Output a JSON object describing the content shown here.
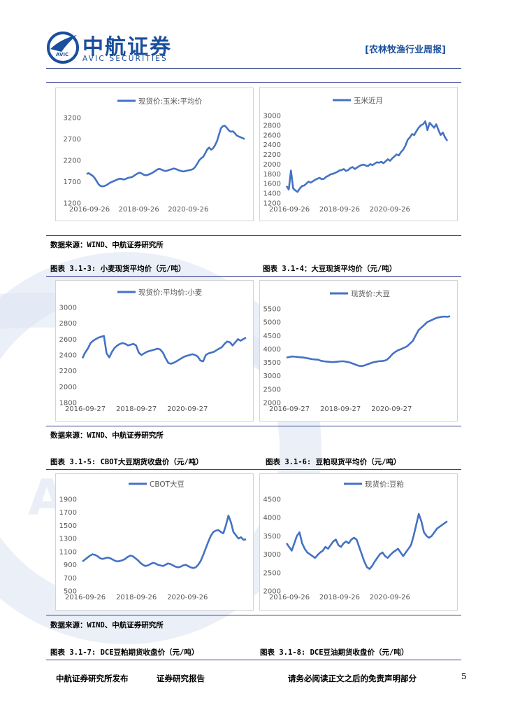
{
  "header": {
    "brand_cn": "中航证券",
    "brand_en": "AVIC SECURITIES",
    "logo_text": "AVIC",
    "report_tag": "[农林牧渔行业周报]"
  },
  "watermark_text": "AVIC",
  "sources": [
    "数据来源：WIND、中航证券研究所",
    "数据来源：WIND、中航证券研究所",
    "数据来源：WIND、中航证券研究所"
  ],
  "captions": {
    "c1_3": "图表 3.1-3:  小麦现货平均价（元/吨）",
    "c1_4": "图表 3.1-4：大豆现货平均价（元/吨）",
    "c1_5": "图表 3.1-5:  CBOT大豆期货收盘价（元/吨）",
    "c1_6": "图表 3.1-6:  豆粕现货平均价（元/吨）",
    "c1_7": "图表 3.1-7:  DCE豆粕期货收盘价（元/吨）",
    "c1_8": "图表 3.1-8:  DCE豆油期货收盘价（元/吨）"
  },
  "footer": {
    "publisher": "中航证券研究所发布",
    "report_type": "证券研究报告",
    "disclaimer": "请务必阅读正文之后的免责声明部分",
    "page": "5"
  },
  "colors": {
    "line": "#4472c4",
    "brand": "#1a4f9c",
    "rule": "#1a2f80"
  },
  "chart_data": [
    {
      "type": "line",
      "series": [
        {
          "name": "现货价:玉米:平均价",
          "values": [
            1880,
            1900,
            1870,
            1840,
            1790,
            1720,
            1640,
            1600,
            1590,
            1600,
            1620,
            1650,
            1680,
            1700,
            1720,
            1740,
            1760,
            1770,
            1760,
            1750,
            1770,
            1790,
            1800,
            1810,
            1840,
            1870,
            1900,
            1910,
            1890,
            1860,
            1850,
            1860,
            1880,
            1900,
            1930,
            1960,
            1990,
            2000,
            1980,
            1960,
            1950,
            1960,
            1980,
            1990,
            2010,
            2000,
            1980,
            1960,
            1950,
            1940,
            1950,
            1960,
            1970,
            1980,
            2000,
            2050,
            2120,
            2200,
            2250,
            2280,
            2360,
            2450,
            2500,
            2450,
            2480,
            2550,
            2650,
            2800,
            2950,
            3000,
            3010,
            2960,
            2900,
            2870,
            2880,
            2840,
            2780,
            2760,
            2740,
            2720,
            2700
          ]
        }
      ],
      "x_ticks": [
        "2016-09-26",
        "2018-09-26",
        "2020-09-26"
      ],
      "y_ticks": [
        "1200",
        "1700",
        "2200",
        "2700",
        "3200"
      ],
      "ylim": [
        1200,
        3200
      ]
    },
    {
      "type": "line",
      "series": [
        {
          "name": "玉米近月",
          "values": [
            1550,
            1480,
            1870,
            1500,
            1460,
            1430,
            1500,
            1550,
            1560,
            1600,
            1640,
            1620,
            1650,
            1680,
            1700,
            1720,
            1690,
            1700,
            1740,
            1760,
            1790,
            1800,
            1820,
            1840,
            1870,
            1880,
            1900,
            1860,
            1880,
            1920,
            1940,
            1900,
            1930,
            1960,
            1980,
            1990,
            1970,
            1960,
            2000,
            1980,
            2010,
            2040,
            2030,
            2050,
            2020,
            2060,
            2100,
            2070,
            2120,
            2160,
            2200,
            2180,
            2250,
            2300,
            2380,
            2500,
            2550,
            2620,
            2600,
            2680,
            2750,
            2800,
            2820,
            2880,
            2700,
            2850,
            2800,
            2750,
            2820,
            2700,
            2600,
            2650,
            2550,
            2480
          ]
        }
      ],
      "x_ticks": [
        "2016-09-26",
        "2018-09-26",
        "2020-09-26"
      ],
      "y_ticks": [
        "1200",
        "1400",
        "1600",
        "1800",
        "2000",
        "2200",
        "2400",
        "2600",
        "2800",
        "3000"
      ],
      "ylim": [
        1200,
        3000
      ]
    },
    {
      "type": "line",
      "series": [
        {
          "name": "现货价:平均价:小麦",
          "values": [
            2360,
            2430,
            2480,
            2550,
            2580,
            2600,
            2620,
            2630,
            2640,
            2420,
            2370,
            2440,
            2490,
            2520,
            2540,
            2550,
            2540,
            2520,
            2530,
            2540,
            2520,
            2430,
            2400,
            2420,
            2440,
            2450,
            2460,
            2470,
            2480,
            2470,
            2430,
            2360,
            2300,
            2290,
            2300,
            2320,
            2340,
            2360,
            2380,
            2390,
            2400,
            2410,
            2400,
            2380,
            2330,
            2320,
            2400,
            2420,
            2430,
            2440,
            2460,
            2480,
            2500,
            2540,
            2570,
            2560,
            2520,
            2560,
            2600,
            2580,
            2600,
            2620
          ]
        }
      ],
      "x_ticks": [
        "2016-09-27",
        "2018-09-27",
        "2020-09-27"
      ],
      "y_ticks": [
        "1800",
        "2000",
        "2200",
        "2400",
        "2600",
        "2800",
        "3000"
      ],
      "ylim": [
        1800,
        3000
      ]
    },
    {
      "type": "line",
      "series": [
        {
          "name": "现货价:大豆",
          "values": [
            3680,
            3700,
            3720,
            3710,
            3700,
            3690,
            3680,
            3660,
            3640,
            3620,
            3610,
            3600,
            3560,
            3540,
            3530,
            3520,
            3510,
            3520,
            3530,
            3540,
            3540,
            3520,
            3500,
            3460,
            3420,
            3380,
            3360,
            3380,
            3420,
            3460,
            3500,
            3520,
            3540,
            3550,
            3560,
            3600,
            3700,
            3820,
            3900,
            3960,
            4000,
            4050,
            4100,
            4200,
            4300,
            4500,
            4700,
            4800,
            4900,
            5000,
            5050,
            5100,
            5150,
            5180,
            5200,
            5210,
            5200,
            5220
          ]
        }
      ],
      "x_ticks": [
        "2016-09-27",
        "2018-09-27",
        "2020-09-27"
      ],
      "y_ticks": [
        "2000",
        "2500",
        "3000",
        "3500",
        "4000",
        "4500",
        "5000",
        "5500"
      ],
      "ylim": [
        2000,
        5500
      ]
    },
    {
      "type": "line",
      "series": [
        {
          "name": "CBOT大豆",
          "values": [
            950,
            980,
            1010,
            1040,
            1060,
            1050,
            1030,
            1000,
            990,
            1000,
            1010,
            1000,
            980,
            960,
            950,
            960,
            970,
            990,
            1020,
            1040,
            1030,
            1000,
            970,
            930,
            900,
            880,
            890,
            910,
            930,
            920,
            900,
            890,
            880,
            900,
            920,
            910,
            890,
            870,
            860,
            870,
            890,
            900,
            880,
            860,
            850,
            860,
            900,
            960,
            1050,
            1150,
            1250,
            1340,
            1400,
            1420,
            1430,
            1400,
            1380,
            1500,
            1650,
            1550,
            1400,
            1350,
            1300,
            1320,
            1280,
            1290
          ]
        }
      ],
      "x_ticks": [
        "2016-09-26",
        "2018-09-26",
        "2020-09-26"
      ],
      "y_ticks": [
        "500",
        "700",
        "900",
        "1100",
        "1300",
        "1500",
        "1700",
        "1900"
      ],
      "ylim": [
        500,
        1900
      ]
    },
    {
      "type": "line",
      "series": [
        {
          "name": "现货价:豆粕",
          "values": [
            3300,
            3200,
            3100,
            3300,
            3500,
            3600,
            3300,
            3150,
            3050,
            3000,
            2950,
            2900,
            2980,
            3050,
            3100,
            3200,
            3150,
            3250,
            3350,
            3400,
            3250,
            3200,
            3300,
            3350,
            3300,
            3400,
            3450,
            3400,
            3200,
            3000,
            2800,
            2650,
            2600,
            2680,
            2800,
            2900,
            3000,
            3050,
            2950,
            2900,
            2980,
            3050,
            3100,
            3150,
            3050,
            2950,
            3050,
            3150,
            3250,
            3500,
            3800,
            4100,
            3900,
            3600,
            3500,
            3450,
            3500,
            3600,
            3700,
            3750,
            3800,
            3850,
            3900
          ]
        }
      ],
      "x_ticks": [
        "2016-09-26",
        "2018-09-26",
        "2020-09-26"
      ],
      "y_ticks": [
        "2000",
        "2500",
        "3000",
        "3500",
        "4000",
        "4500"
      ],
      "ylim": [
        2000,
        4500
      ]
    }
  ]
}
